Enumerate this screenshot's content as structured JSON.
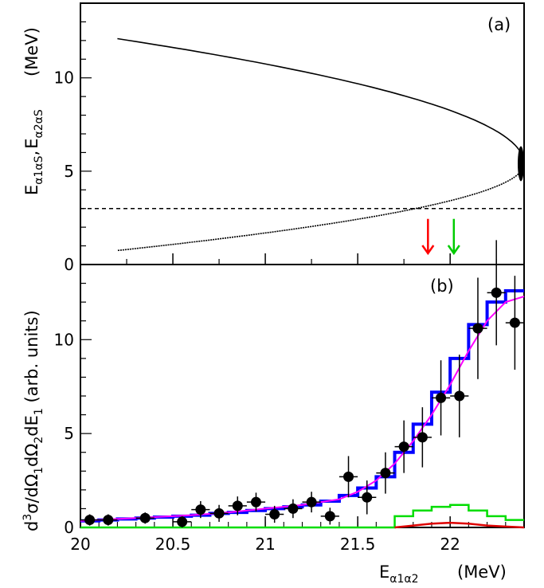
{
  "chart_data": [
    {
      "panel": "(a)",
      "type": "scatter",
      "ylabel": "E_{α1αS}, E_{α2αS}",
      "ylabel_main": "E",
      "ylabel_sub1": "α1αS",
      "ylabel_sep": ",",
      "ylabel_sub2": "α2αS",
      "yunit": "(MeV)",
      "xlim": [
        20,
        22.4
      ],
      "ylim": [
        0,
        14
      ],
      "yticks": [
        0,
        5,
        10
      ],
      "ytick_labels": [
        "0",
        "5",
        "10"
      ],
      "locus": {
        "apex": {
          "x": 22.4,
          "y": 5.4
        },
        "end_points": [
          {
            "x": 20.2,
            "y": 12.1
          },
          {
            "x": 20.2,
            "y": 0.75
          }
        ]
      },
      "threshold_line": {
        "y": 3.0,
        "style": "dashed"
      },
      "arrows": [
        {
          "x": 21.88,
          "color": "#ff0000"
        },
        {
          "x": 22.02,
          "color": "#00cc00"
        }
      ]
    },
    {
      "panel": "(b)",
      "type": "line",
      "ylabel": "d³σ/dΩ₁dΩ₂dE₁ (arb. units)",
      "ylabel_main": "d",
      "ylabel_sup": "3",
      "ylabel_mid": "σ/dΩ",
      "ylabel_sub1": "1",
      "ylabel_mid2": "dΩ",
      "ylabel_sub2": "2",
      "ylabel_mid3": "dE",
      "ylabel_sub3": "1",
      "ylabel_tail": " (arb. units)",
      "xlabel": "E_{α1α2}",
      "xlabel_main": "E",
      "xlabel_sub": "α1α2",
      "xunit": "(MeV)",
      "xlim": [
        20,
        22.4
      ],
      "ylim": [
        0,
        14
      ],
      "xticks": [
        20,
        20.5,
        21,
        21.5,
        22
      ],
      "xtick_labels": [
        "20",
        "20.5",
        "21",
        "21.5",
        "22"
      ],
      "yticks": [
        0,
        5,
        10
      ],
      "ytick_labels": [
        "0",
        "5",
        "10"
      ],
      "data_points": [
        {
          "x": 20.05,
          "y": 0.4,
          "yerr": 0.3
        },
        {
          "x": 20.15,
          "y": 0.4,
          "yerr": 0.3
        },
        {
          "x": 20.35,
          "y": 0.5,
          "yerr": 0.3
        },
        {
          "x": 20.55,
          "y": 0.3,
          "yerr": 0.3
        },
        {
          "x": 20.65,
          "y": 0.95,
          "yerr": 0.45
        },
        {
          "x": 20.75,
          "y": 0.75,
          "yerr": 0.45
        },
        {
          "x": 20.85,
          "y": 1.15,
          "yerr": 0.5
        },
        {
          "x": 20.95,
          "y": 1.35,
          "yerr": 0.5
        },
        {
          "x": 21.05,
          "y": 0.7,
          "yerr": 0.45
        },
        {
          "x": 21.15,
          "y": 1.0,
          "yerr": 0.5
        },
        {
          "x": 21.25,
          "y": 1.35,
          "yerr": 0.55
        },
        {
          "x": 21.35,
          "y": 0.6,
          "yerr": 0.45
        },
        {
          "x": 21.45,
          "y": 2.7,
          "yerr": 1.1
        },
        {
          "x": 21.55,
          "y": 1.6,
          "yerr": 0.9
        },
        {
          "x": 21.65,
          "y": 2.9,
          "yerr": 1.1
        },
        {
          "x": 21.75,
          "y": 4.3,
          "yerr": 1.4
        },
        {
          "x": 21.85,
          "y": 4.8,
          "yerr": 1.6
        },
        {
          "x": 21.95,
          "y": 6.9,
          "yerr": 2.0
        },
        {
          "x": 22.05,
          "y": 7.0,
          "yerr": 2.2
        },
        {
          "x": 22.15,
          "y": 10.6,
          "yerr": 2.7
        },
        {
          "x": 22.25,
          "y": 12.5,
          "yerr": 2.8
        },
        {
          "x": 22.35,
          "y": 10.9,
          "yerr": 2.5
        }
      ],
      "series": [
        {
          "color": "#0000ff",
          "style": "histogram",
          "bin_width": 0.1,
          "bin_starts": [
            20.0,
            20.1,
            20.2,
            20.3,
            20.4,
            20.5,
            20.6,
            20.7,
            20.8,
            20.9,
            21.0,
            21.1,
            21.2,
            21.3,
            21.4,
            21.5,
            21.6,
            21.7,
            21.8,
            21.9,
            22.0,
            22.1,
            22.2,
            22.3
          ],
          "values": [
            0.35,
            0.4,
            0.45,
            0.5,
            0.55,
            0.6,
            0.65,
            0.75,
            0.8,
            0.9,
            1.0,
            1.1,
            1.2,
            1.4,
            1.7,
            2.1,
            2.7,
            4.0,
            5.5,
            7.2,
            9.0,
            10.8,
            12.0,
            12.6
          ]
        },
        {
          "color": "#ff00ff",
          "style": "curve",
          "x": [
            20.0,
            20.2,
            20.4,
            20.6,
            20.8,
            21.0,
            21.2,
            21.4,
            21.5,
            21.6,
            21.7,
            21.8,
            21.9,
            22.0,
            22.1,
            22.2,
            22.3,
            22.4
          ],
          "values": [
            0.35,
            0.45,
            0.55,
            0.65,
            0.8,
            1.0,
            1.2,
            1.5,
            1.9,
            2.5,
            3.4,
            4.6,
            6.0,
            7.6,
            9.4,
            11.0,
            12.0,
            12.3
          ]
        },
        {
          "color": "#00dd00",
          "style": "histogram",
          "bin_width": 0.1,
          "bin_starts": [
            21.7,
            21.8,
            21.9,
            22.0,
            22.1,
            22.2,
            22.3
          ],
          "values": [
            0.6,
            0.9,
            1.1,
            1.2,
            0.9,
            0.6,
            0.4
          ]
        },
        {
          "color": "#dd0000",
          "style": "curve",
          "x": [
            21.7,
            21.8,
            21.9,
            22.0,
            22.1,
            22.2,
            22.3,
            22.4
          ],
          "values": [
            0.0,
            0.1,
            0.2,
            0.25,
            0.2,
            0.1,
            0.05,
            0.0
          ]
        }
      ]
    }
  ]
}
